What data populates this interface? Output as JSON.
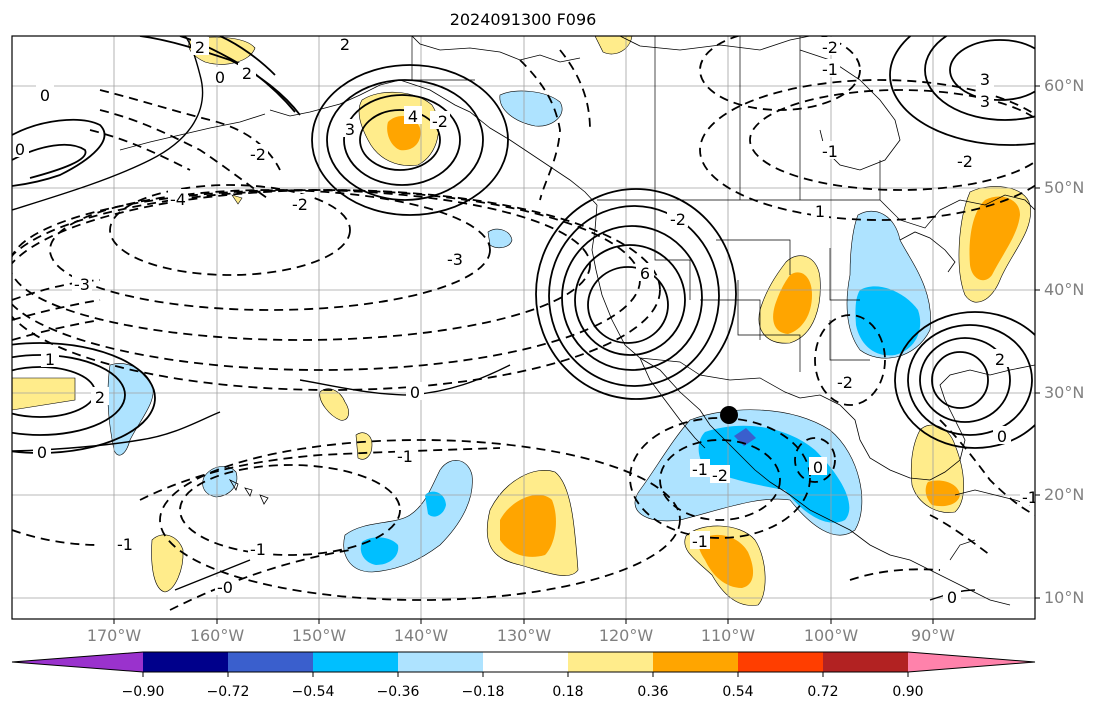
{
  "title": "2024091300 F096",
  "map": {
    "lat_labels": [
      "60°N",
      "50°N",
      "40°N",
      "30°N",
      "20°N",
      "10°N"
    ],
    "lon_labels": [
      "170°W",
      "160°W",
      "150°W",
      "140°W",
      "130°W",
      "120°W",
      "110°W",
      "100°W",
      "90°W"
    ]
  },
  "contour_labels": [
    "2",
    "0",
    "2",
    "-2",
    "2",
    "0",
    "3",
    "0",
    "-2",
    "-2",
    "3",
    "4",
    "-2",
    "-4",
    "-2",
    "-3",
    "3",
    "-3",
    "2",
    "6",
    "-2",
    "-1",
    "0",
    "-2",
    "-1",
    "1",
    "-1",
    "-1",
    "0",
    "-1",
    "-1",
    "2",
    "1",
    "0",
    "-2",
    "2",
    "0",
    "-1",
    "0",
    "-1",
    "-0"
  ],
  "colorbar": {
    "colors": [
      "#9a32cd",
      "#00008b",
      "#3a5fcd",
      "#00bfff",
      "#aee3ff",
      "#ffffff",
      "#ffec8b",
      "#ffa500",
      "#ff3e00",
      "#b22222",
      "#ff82ab"
    ],
    "ticks": [
      "−0.90",
      "−0.72",
      "−0.54",
      "−0.36",
      "−0.18",
      "0.18",
      "0.36",
      "0.54",
      "0.72",
      "0.90"
    ]
  }
}
